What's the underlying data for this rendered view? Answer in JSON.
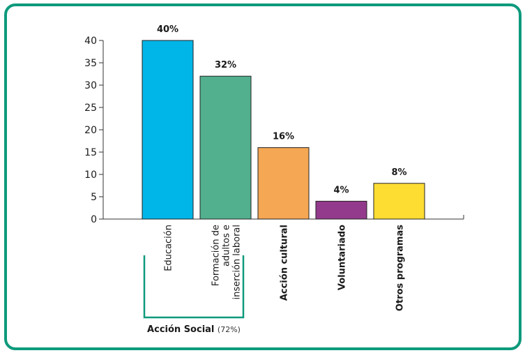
{
  "chart_data": {
    "type": "bar",
    "categories": [
      [
        "Educación"
      ],
      [
        "Formación de",
        "adultos e",
        "inserción laboral"
      ],
      [
        "Acción cultural"
      ],
      [
        "Voluntariado"
      ],
      [
        "Otros programas"
      ]
    ],
    "values": [
      40,
      32,
      16,
      4,
      8
    ],
    "data_labels": [
      "40%",
      "32%",
      "16%",
      "4%",
      "8%"
    ],
    "bar_colors": [
      "#00b5e8",
      "#52b08f",
      "#f5a753",
      "#933a8c",
      "#fedd33"
    ],
    "category_bold": [
      false,
      false,
      true,
      true,
      true
    ],
    "ylim": [
      0,
      40
    ],
    "yticks": [
      0,
      5,
      10,
      15,
      20,
      25,
      30,
      35,
      40
    ],
    "grid": false,
    "group": {
      "label": "Acción Social",
      "suffix": "(72%)",
      "color": "#0e9a7c",
      "spans_categories": [
        0,
        1
      ]
    }
  },
  "colors": {
    "frame_border": "#0e9a7c"
  }
}
